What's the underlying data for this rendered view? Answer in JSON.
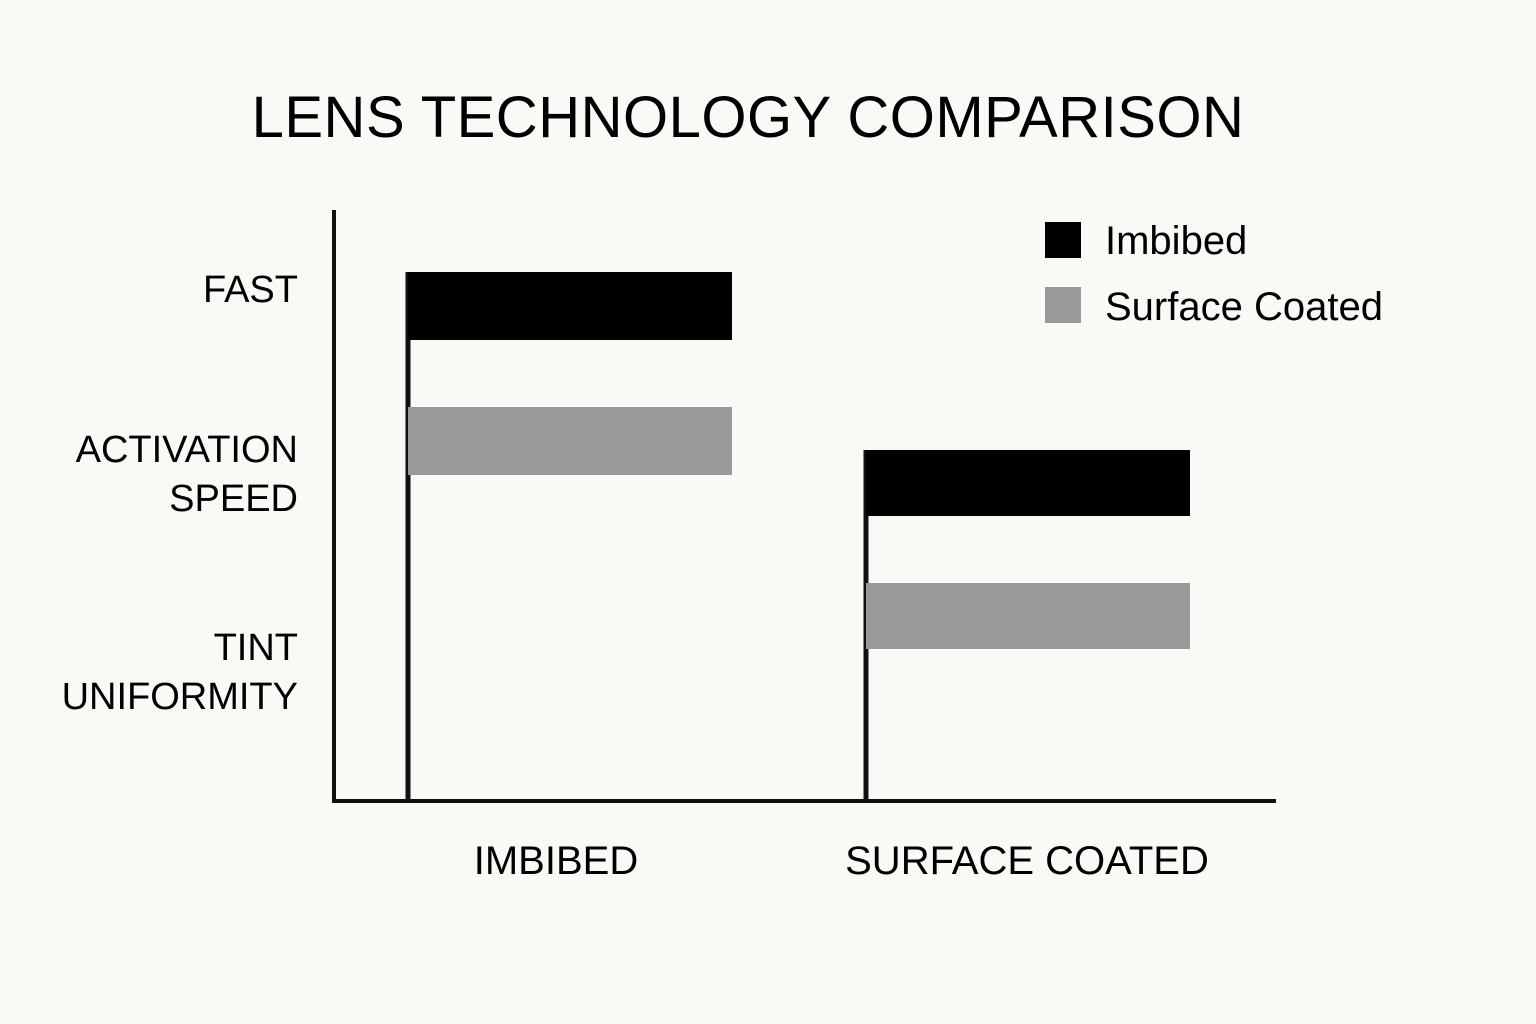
{
  "chart_data": {
    "type": "bar",
    "orientation": "horizontal",
    "title": "LENS TECHNOLOGY COMPARISON",
    "y_labels": [
      [
        "FAST"
      ],
      [
        "ACTIVATION",
        "SPEED"
      ],
      [
        "TINT",
        "UNIFORMITY"
      ]
    ],
    "categories": [
      "IMBIBED",
      "SURFACE COATED"
    ],
    "series": [
      {
        "name": "Imbibed",
        "color": "#000000"
      },
      {
        "name": "Surface Coated",
        "color": "#999999"
      }
    ],
    "grid": false,
    "legend_position": "top-right"
  }
}
